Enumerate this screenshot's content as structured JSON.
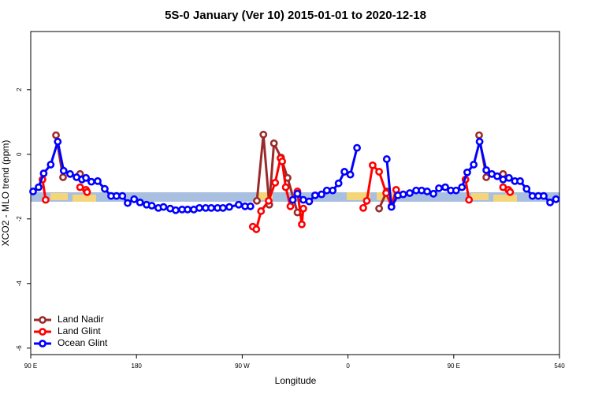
{
  "chart_data": {
    "type": "line",
    "title": "5S-0 January (Ver 10)   2015-01-01 to 2020-12-18",
    "xlabel": "Longitude",
    "ylabel": "XCO2 - MLO trend (ppm)",
    "xlim": [
      90,
      540
    ],
    "ylim": [
      -6.2,
      3.8
    ],
    "xticks": [
      {
        "value": 90,
        "label": "90 E"
      },
      180,
      {
        "value": 270,
        "label": "90 W"
      },
      {
        "value": 360,
        "label": "0"
      },
      {
        "value": 450,
        "label": "90 E"
      },
      540
    ],
    "yticks": [
      2,
      0,
      -2,
      -4,
      -6
    ],
    "legend": "bottomleft",
    "series": [
      {
        "name": "Land Nadir",
        "color": "#9b2a2a",
        "x": [
          111.5,
          117.5,
          null,
          132,
          null,
          282.5,
          288,
          293,
          297,
          303,
          308.6,
          317,
          null,
          386.5,
          393,
          null,
          471.6,
          477.7,
          null,
          492
        ],
        "values": [
          0.59,
          -0.71,
          null,
          -0.61,
          null,
          -1.44,
          0.61,
          -1.56,
          0.34,
          -0.1,
          -0.73,
          -1.8,
          null,
          -1.68,
          -1.15,
          null,
          0.59,
          -0.71,
          null,
          -0.61
        ]
      },
      {
        "name": "Land Glint",
        "color": "#ff0000",
        "x": [
          100,
          102.7,
          null,
          132,
          137,
          138,
          null,
          279,
          282,
          286,
          292.5,
          298,
          302.6,
          304,
          307,
          311,
          317,
          320.7,
          322,
          null,
          373,
          376,
          381,
          386.5,
          392.5,
          397,
          401,
          null,
          460,
          463,
          null,
          492,
          496.5,
          498
        ],
        "values": [
          -0.78,
          -1.41,
          null,
          -1.02,
          -1.1,
          -1.17,
          null,
          -2.24,
          -2.32,
          -1.76,
          -1.44,
          -0.88,
          -0.12,
          -0.22,
          -1.02,
          -1.61,
          -1.15,
          -2.17,
          -1.68,
          null,
          -1.66,
          -1.44,
          -0.34,
          -0.54,
          -1.2,
          -1.61,
          -1.1,
          null,
          -0.78,
          -1.41,
          null,
          -1.02,
          -1.1,
          -1.17
        ]
      },
      {
        "name": "Ocean Glint",
        "color": "#0000ff",
        "x": [
          92,
          96.7,
          101,
          107,
          113,
          118,
          123.5,
          129,
          133.6,
          137,
          141.6,
          147,
          153,
          158.4,
          163,
          168,
          172.5,
          178,
          183,
          188.6,
          193,
          198.6,
          203,
          208.7,
          213.4,
          218.8,
          223.5,
          228.8,
          233.5,
          238.9,
          243.6,
          249,
          253.6,
          259,
          267,
          272.4,
          277,
          null,
          313,
          317,
          322,
          327,
          332,
          337.5,
          342,
          347,
          352,
          357,
          362,
          367.7,
          null,
          393,
          397,
          402.5,
          407,
          412.6,
          418,
          422.7,
          427.4,
          432.7,
          437.4,
          442.8,
          447.5,
          452,
          457,
          461.5,
          467,
          472,
          477.7,
          482.4,
          487,
          492,
          497,
          502,
          506.5,
          512,
          517,
          522,
          526.6,
          532,
          537
        ],
        "values": [
          -1.15,
          -1.02,
          -0.59,
          -0.32,
          0.39,
          -0.51,
          -0.61,
          -0.71,
          -0.78,
          -0.73,
          -0.85,
          -0.83,
          -1.07,
          -1.29,
          -1.29,
          -1.29,
          -1.51,
          -1.39,
          -1.49,
          -1.56,
          -1.59,
          -1.66,
          -1.63,
          -1.68,
          -1.73,
          -1.71,
          -1.71,
          -1.71,
          -1.66,
          -1.66,
          -1.66,
          -1.66,
          -1.66,
          -1.63,
          -1.56,
          -1.61,
          -1.61,
          null,
          -1.41,
          -1.22,
          -1.41,
          -1.46,
          -1.27,
          -1.24,
          -1.12,
          -1.12,
          -0.9,
          -0.54,
          -0.63,
          0.2,
          null,
          -0.15,
          -1.63,
          -1.27,
          -1.24,
          -1.2,
          -1.12,
          -1.12,
          -1.15,
          -1.22,
          -1.05,
          -1.02,
          -1.12,
          -1.12,
          -1.02,
          -0.56,
          -0.32,
          0.39,
          -0.49,
          -0.61,
          -0.68,
          -0.78,
          -0.73,
          -0.83,
          -0.83,
          -1.07,
          -1.29,
          -1.29,
          -1.29,
          -1.49,
          -1.39
        ]
      }
    ]
  }
}
